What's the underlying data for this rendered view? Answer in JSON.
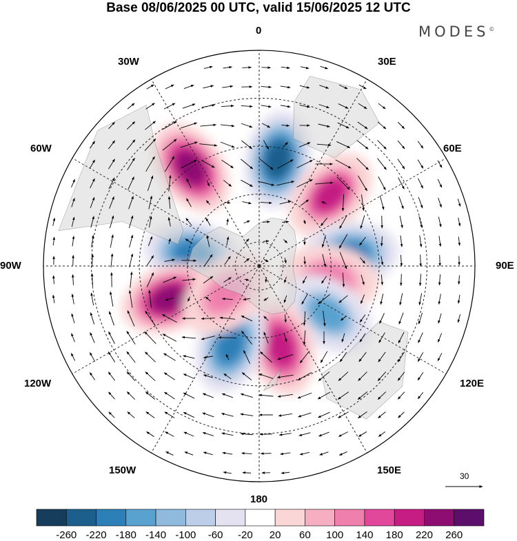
{
  "title": "Base 08/06/2025 00 UTC, valid 15/06/2025 12 UTC",
  "logo": {
    "text": "MODES",
    "mark": "©"
  },
  "longitude_labels": {
    "n0": "0",
    "n30e": "30E",
    "n60e": "60E",
    "n90e": "90E",
    "n120e": "120E",
    "n150e": "150E",
    "n180": "180",
    "n150w": "150W",
    "n120w": "120W",
    "n90w": "90W",
    "n60w": "60W",
    "n30w": "30W"
  },
  "reference_vector": {
    "label": "30"
  },
  "colorbar": {
    "ticks": [
      "-260",
      "-220",
      "-180",
      "-140",
      "-100",
      "-60",
      "-20",
      "20",
      "60",
      "100",
      "140",
      "180",
      "220",
      "260"
    ],
    "colors": [
      "#163e5c",
      "#1c5e8c",
      "#2d7fb8",
      "#59a2d0",
      "#8fbadd",
      "#bccee8",
      "#e4e2f0",
      "#ffffff",
      "#fad6d6",
      "#f6aec3",
      "#ef7fad",
      "#e2489a",
      "#c51d84",
      "#8e0d73",
      "#5c0f6a"
    ]
  },
  "anomaly_centers": [
    {
      "lon": -35,
      "lat": -40,
      "value": 240
    },
    {
      "lon": 10,
      "lat": -45,
      "value": -240
    },
    {
      "lon": 45,
      "lat": -48,
      "value": 210
    },
    {
      "lon": -80,
      "lat": -62,
      "value": -200
    },
    {
      "lon": 83,
      "lat": -52,
      "value": -200
    },
    {
      "lon": -110,
      "lat": -50,
      "value": 220
    },
    {
      "lon": 100,
      "lat": -60,
      "value": 110
    },
    {
      "lon": 125,
      "lat": -55,
      "value": -180
    },
    {
      "lon": 165,
      "lat": -55,
      "value": 180
    },
    {
      "lon": -160,
      "lat": -55,
      "value": -200
    },
    {
      "lon": -130,
      "lat": -72,
      "value": 100
    }
  ]
}
